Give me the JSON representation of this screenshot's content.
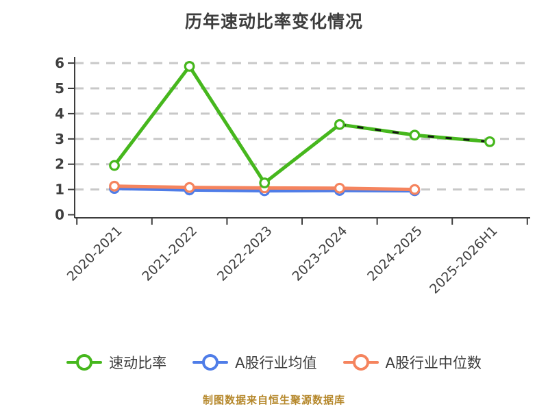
{
  "chart_data": {
    "type": "line",
    "title": "历年速动比率变化情况",
    "categories": [
      "2020-2021",
      "2021-2022",
      "2022-2023",
      "2023-2024",
      "2024-2025",
      "2025-2026H1"
    ],
    "series": [
      {
        "name": "速动比率",
        "color": "#46b71d",
        "values": [
          1.95,
          5.87,
          1.26,
          3.57,
          3.15,
          2.89
        ],
        "overlay_dashed_black_from": 3
      },
      {
        "name": "A股行业均值",
        "color": "#4f7de8",
        "values": [
          1.04,
          0.98,
          0.95,
          0.96,
          0.95,
          null
        ]
      },
      {
        "name": "A股行业中位数",
        "color": "#f5845e",
        "values": [
          1.13,
          1.08,
          1.06,
          1.05,
          1.0,
          null
        ]
      }
    ],
    "ylim": [
      0,
      6
    ],
    "yticks": [
      0,
      1,
      2,
      3,
      4,
      5,
      6
    ],
    "grid": "horizontal-dashed",
    "xlabel": "",
    "ylabel": "",
    "legend_position": "bottom",
    "marker": "circle-white-fill",
    "x_tick_label_rotation": 45
  },
  "colors": {
    "background": "#ffffff",
    "title_text": "#3d3d3d",
    "axis": "#3d3d3d",
    "tick_label": "#3f3f3f",
    "gridline": "#c8c8c8",
    "overlay_dash": "#141414",
    "footer_text": "#b5872a"
  },
  "footer": {
    "text": "制图数据来自恒生聚源数据库"
  }
}
